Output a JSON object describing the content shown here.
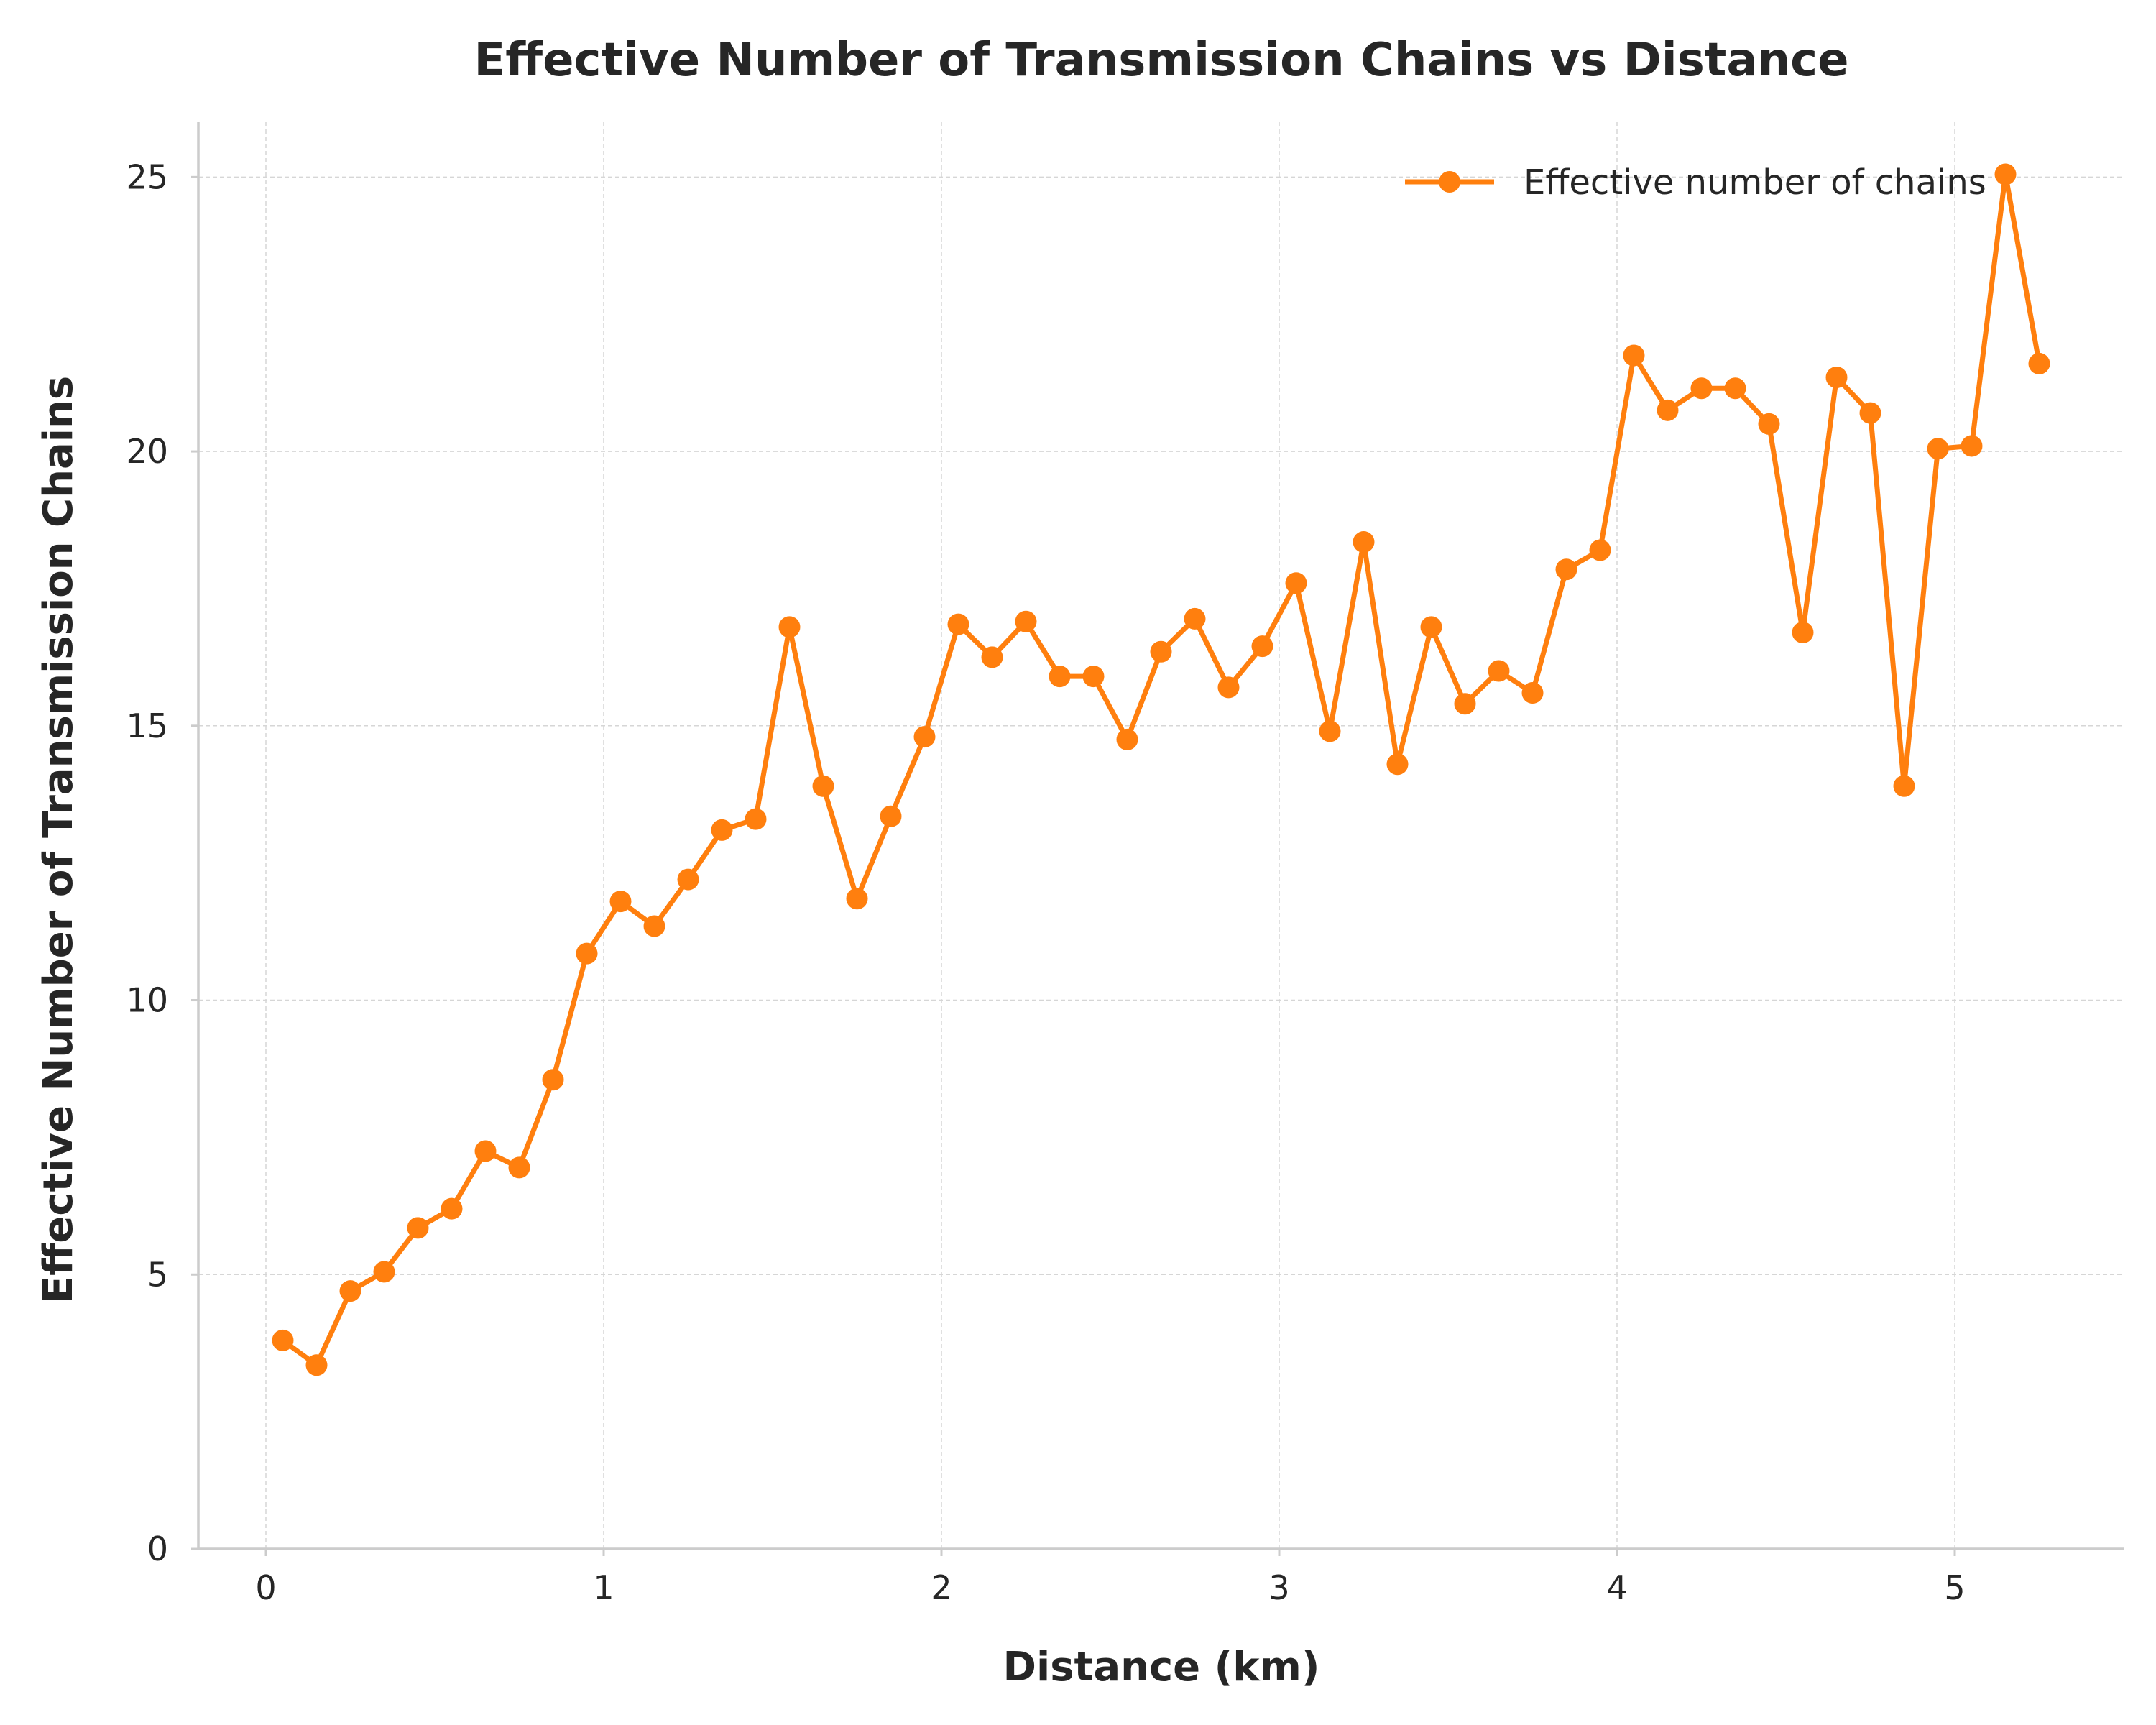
{
  "chart_data": {
    "type": "line",
    "title": "Effective Number of Transmission Chains vs Distance",
    "xlabel": "Distance (km)",
    "ylabel": "Effective Number of Transmission Chains",
    "xlim": [
      -0.2,
      5.5
    ],
    "ylim": [
      0,
      26
    ],
    "xticks": [
      0,
      1,
      2,
      3,
      4,
      5
    ],
    "yticks": [
      0,
      5,
      10,
      15,
      20,
      25
    ],
    "grid": true,
    "legend_position": "top-right",
    "colors": {
      "series": "#ff7f0e",
      "grid": "#d6d6d6",
      "spine": "#cccccc",
      "text": "#262626"
    },
    "series": [
      {
        "name": "Effective number of chains",
        "x": [
          0.05,
          0.15,
          0.25,
          0.35,
          0.45,
          0.55,
          0.65,
          0.75,
          0.85,
          0.95,
          1.05,
          1.15,
          1.25,
          1.35,
          1.45,
          1.55,
          1.65,
          1.75,
          1.85,
          1.95,
          2.05,
          2.15,
          2.25,
          2.35,
          2.45,
          2.55,
          2.65,
          2.75,
          2.85,
          2.95,
          3.05,
          3.15,
          3.25,
          3.35,
          3.45,
          3.55,
          3.65,
          3.75,
          3.85,
          3.95,
          4.05,
          4.15,
          4.25,
          4.35,
          4.45,
          4.55,
          4.65,
          4.75,
          4.85,
          4.95,
          5.05,
          5.15,
          5.25
        ],
        "y": [
          3.8,
          3.35,
          4.7,
          5.05,
          5.85,
          6.2,
          7.25,
          6.95,
          8.55,
          10.85,
          11.8,
          11.35,
          12.2,
          13.1,
          13.3,
          16.8,
          13.9,
          11.85,
          13.35,
          14.8,
          16.85,
          16.25,
          16.9,
          15.9,
          15.9,
          14.75,
          16.35,
          16.95,
          15.7,
          16.45,
          17.6,
          14.9,
          18.35,
          14.3,
          16.8,
          15.4,
          16.0,
          15.6,
          17.85,
          18.2,
          21.75,
          20.75,
          21.15,
          21.15,
          20.5,
          16.7,
          21.35,
          20.7,
          13.9,
          20.05,
          20.1,
          25.05,
          21.6
        ]
      }
    ]
  }
}
